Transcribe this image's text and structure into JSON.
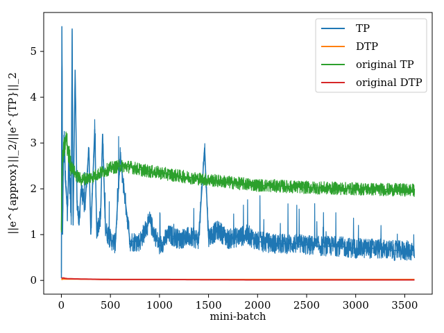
{
  "chart_data": {
    "type": "line",
    "title": "",
    "xlabel": "mini-batch",
    "ylabel": "||e^{approx}||_2/||e^{TP}||_2",
    "xlim": [
      -180,
      3780
    ],
    "ylim": [
      -0.3,
      5.85
    ],
    "xticks": [
      0,
      500,
      1000,
      1500,
      2000,
      2500,
      3000,
      3500
    ],
    "yticks": [
      0,
      1,
      2,
      3,
      4,
      5
    ],
    "grid": false,
    "legend_position": "top-right",
    "series": [
      {
        "name": "TP",
        "color": "#1f77b4",
        "x": [
          0,
          5,
          8,
          12,
          20,
          30,
          40,
          60,
          80,
          100,
          110,
          120,
          140,
          160,
          180,
          200,
          240,
          280,
          300,
          340,
          360,
          400,
          420,
          450,
          500,
          550,
          600,
          700,
          800,
          900,
          1000,
          1100,
          1200,
          1300,
          1400,
          1460,
          1500,
          1600,
          1700,
          1800,
          1900,
          2000,
          2200,
          2400,
          2600,
          2800,
          3000,
          3200,
          3400,
          3600
        ],
        "values": [
          0.05,
          5.55,
          4.4,
          1.0,
          2.6,
          3.0,
          2.2,
          1.6,
          2.5,
          1.4,
          5.5,
          1.2,
          4.6,
          1.7,
          1.2,
          2.0,
          1.6,
          2.9,
          1.0,
          3.3,
          1.1,
          1.4,
          3.2,
          1.1,
          0.9,
          0.8,
          2.7,
          0.85,
          0.85,
          1.3,
          0.75,
          1.0,
          0.9,
          0.95,
          0.9,
          2.9,
          0.95,
          1.1,
          0.9,
          0.95,
          1.0,
          0.85,
          0.8,
          0.8,
          0.75,
          0.75,
          0.7,
          0.7,
          0.65,
          0.65
        ]
      },
      {
        "name": "DTP",
        "color": "#ff7f0e",
        "x": [
          0,
          20,
          100,
          500,
          1000,
          2000,
          3000,
          3600
        ],
        "values": [
          0.02,
          0.03,
          0.03,
          0.02,
          0.02,
          0.02,
          0.02,
          0.02
        ]
      },
      {
        "name": "original TP",
        "color": "#2ca02c",
        "x": [
          0,
          5,
          10,
          30,
          50,
          70,
          100,
          150,
          200,
          300,
          400,
          500,
          600,
          700,
          800,
          900,
          1000,
          1200,
          1400,
          1600,
          1800,
          2000,
          2200,
          2400,
          2600,
          2800,
          3000,
          3200,
          3400,
          3600
        ],
        "values": [
          1.1,
          2.1,
          2.6,
          2.9,
          3.1,
          2.8,
          2.5,
          2.3,
          2.2,
          2.25,
          2.35,
          2.45,
          2.5,
          2.48,
          2.42,
          2.38,
          2.35,
          2.28,
          2.22,
          2.17,
          2.12,
          2.08,
          2.06,
          2.04,
          2.02,
          2.01,
          2.0,
          1.99,
          1.98,
          1.97
        ]
      },
      {
        "name": "original DTP",
        "color": "#d62728",
        "x": [
          0,
          10,
          50,
          200,
          500,
          1000,
          2000,
          3000,
          3600
        ],
        "values": [
          0.05,
          0.06,
          0.04,
          0.03,
          0.02,
          0.02,
          0.01,
          0.01,
          0.01
        ]
      }
    ],
    "noise": {
      "TP": 0.22,
      "original TP": 0.14
    }
  }
}
